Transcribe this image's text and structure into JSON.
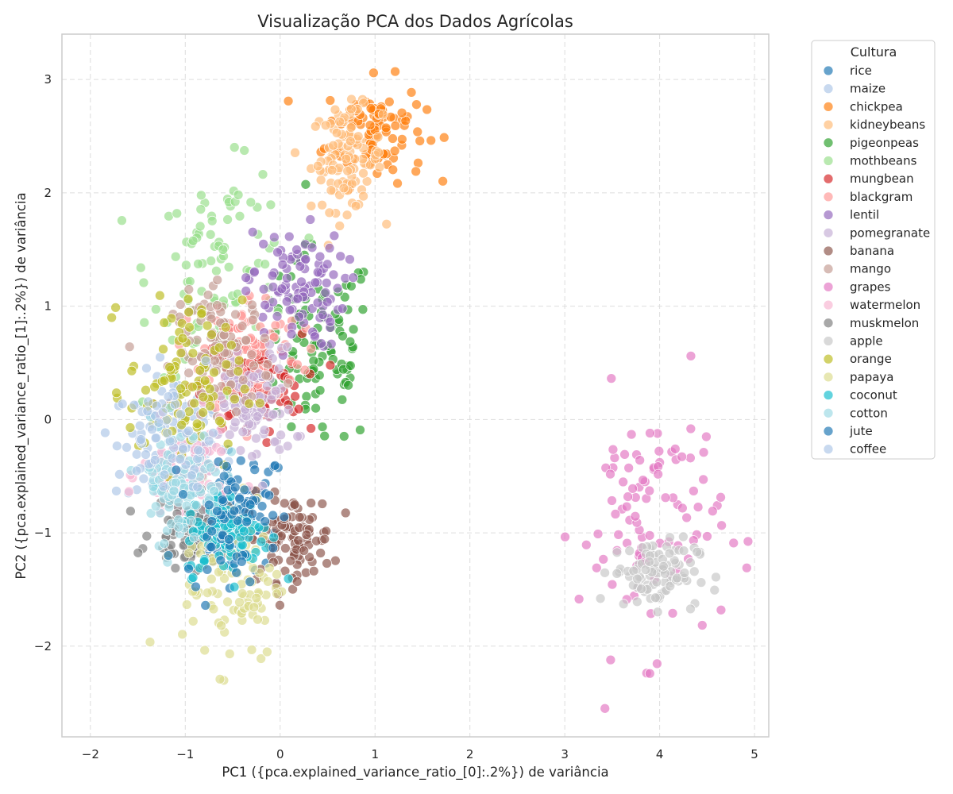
{
  "chart_data": {
    "type": "scatter",
    "title": "Visualização PCA dos Dados Agrícolas",
    "xlabel": "PC1 ({pca.explained_variance_ratio_[0]:.2%}) de variância",
    "ylabel": "PC2 ({pca.explained_variance_ratio_[1]:.2%}) de variância",
    "xlim": [
      -2.3,
      5.15
    ],
    "ylim": [
      -2.8,
      3.4
    ],
    "xticks": [
      -2,
      -1,
      0,
      1,
      2,
      3,
      4,
      5
    ],
    "xtick_labels": [
      "−2",
      "−1",
      "0",
      "1",
      "2",
      "3",
      "4",
      "5"
    ],
    "yticks": [
      -2,
      -1,
      0,
      1,
      2,
      3
    ],
    "ytick_labels": [
      "−2",
      "−1",
      "0",
      "1",
      "2",
      "3"
    ],
    "grid": true,
    "legend_title": "Cultura",
    "legend_position": "outside-right",
    "series": [
      {
        "name": "rice",
        "color": "#1f77b4",
        "center": [
          -0.45,
          -0.8
        ],
        "spread": [
          0.35,
          0.35
        ],
        "count": 60
      },
      {
        "name": "maize",
        "color": "#aec7e8",
        "center": [
          -1.1,
          -0.2
        ],
        "spread": [
          0.35,
          0.4
        ],
        "count": 70
      },
      {
        "name": "chickpea",
        "color": "#ff7f0e",
        "center": [
          1.0,
          2.55
        ],
        "spread": [
          0.35,
          0.3
        ],
        "count": 100
      },
      {
        "name": "kidneybeans",
        "color": "#ffbb78",
        "center": [
          0.7,
          2.3
        ],
        "spread": [
          0.25,
          0.3
        ],
        "count": 100
      },
      {
        "name": "pigeonpeas",
        "color": "#2ca02c",
        "center": [
          0.4,
          0.6
        ],
        "spread": [
          0.4,
          0.6
        ],
        "count": 100
      },
      {
        "name": "mothbeans",
        "color": "#98df8a",
        "center": [
          -0.6,
          1.3
        ],
        "spread": [
          0.5,
          0.6
        ],
        "count": 100
      },
      {
        "name": "mungbean",
        "color": "#d62728",
        "center": [
          -0.3,
          0.3
        ],
        "spread": [
          0.35,
          0.3
        ],
        "count": 100
      },
      {
        "name": "blackgram",
        "color": "#ff9896",
        "center": [
          -0.3,
          0.6
        ],
        "spread": [
          0.35,
          0.35
        ],
        "count": 100
      },
      {
        "name": "lentil",
        "color": "#9467bd",
        "center": [
          0.15,
          1.15
        ],
        "spread": [
          0.35,
          0.35
        ],
        "count": 100
      },
      {
        "name": "pomegranate",
        "color": "#c5b0d5",
        "center": [
          -0.3,
          0.1
        ],
        "spread": [
          0.3,
          0.35
        ],
        "count": 100
      },
      {
        "name": "banana",
        "color": "#8c564b",
        "center": [
          0.1,
          -1.05
        ],
        "spread": [
          0.3,
          0.25
        ],
        "count": 100
      },
      {
        "name": "mango",
        "color": "#c49c94",
        "center": [
          -0.6,
          0.6
        ],
        "spread": [
          0.35,
          0.35
        ],
        "count": 100
      },
      {
        "name": "grapes",
        "color": "#e377c2",
        "center": [
          3.9,
          -0.9
        ],
        "spread": [
          0.5,
          0.75
        ],
        "count": 100
      },
      {
        "name": "watermelon",
        "color": "#f7b6d2",
        "center": [
          -1.0,
          -0.5
        ],
        "spread": [
          0.3,
          0.3
        ],
        "count": 100
      },
      {
        "name": "muskmelon",
        "color": "#7f7f7f",
        "center": [
          -0.9,
          -1.0
        ],
        "spread": [
          0.3,
          0.2
        ],
        "count": 100
      },
      {
        "name": "apple",
        "color": "#c7c7c7",
        "center": [
          3.95,
          -1.35
        ],
        "spread": [
          0.3,
          0.2
        ],
        "count": 100
      },
      {
        "name": "orange",
        "color": "#bcbd22",
        "center": [
          -1.0,
          0.3
        ],
        "spread": [
          0.4,
          0.5
        ],
        "count": 100
      },
      {
        "name": "papaya",
        "color": "#dbdb8d",
        "center": [
          -0.5,
          -1.4
        ],
        "spread": [
          0.35,
          0.5
        ],
        "count": 100
      },
      {
        "name": "coconut",
        "color": "#17becf",
        "center": [
          -0.55,
          -1.0
        ],
        "spread": [
          0.3,
          0.25
        ],
        "count": 100
      },
      {
        "name": "cotton",
        "color": "#9edae5",
        "center": [
          -1.05,
          -0.55
        ],
        "spread": [
          0.3,
          0.35
        ],
        "count": 100
      },
      {
        "name": "jute",
        "color": "#1f77b4",
        "center": [
          -0.55,
          -0.85
        ],
        "spread": [
          0.3,
          0.35
        ],
        "count": 60
      },
      {
        "name": "coffee",
        "color": "#aec7e8",
        "center": [
          -1.2,
          -0.2
        ],
        "spread": [
          0.35,
          0.35
        ],
        "count": 60
      }
    ]
  }
}
